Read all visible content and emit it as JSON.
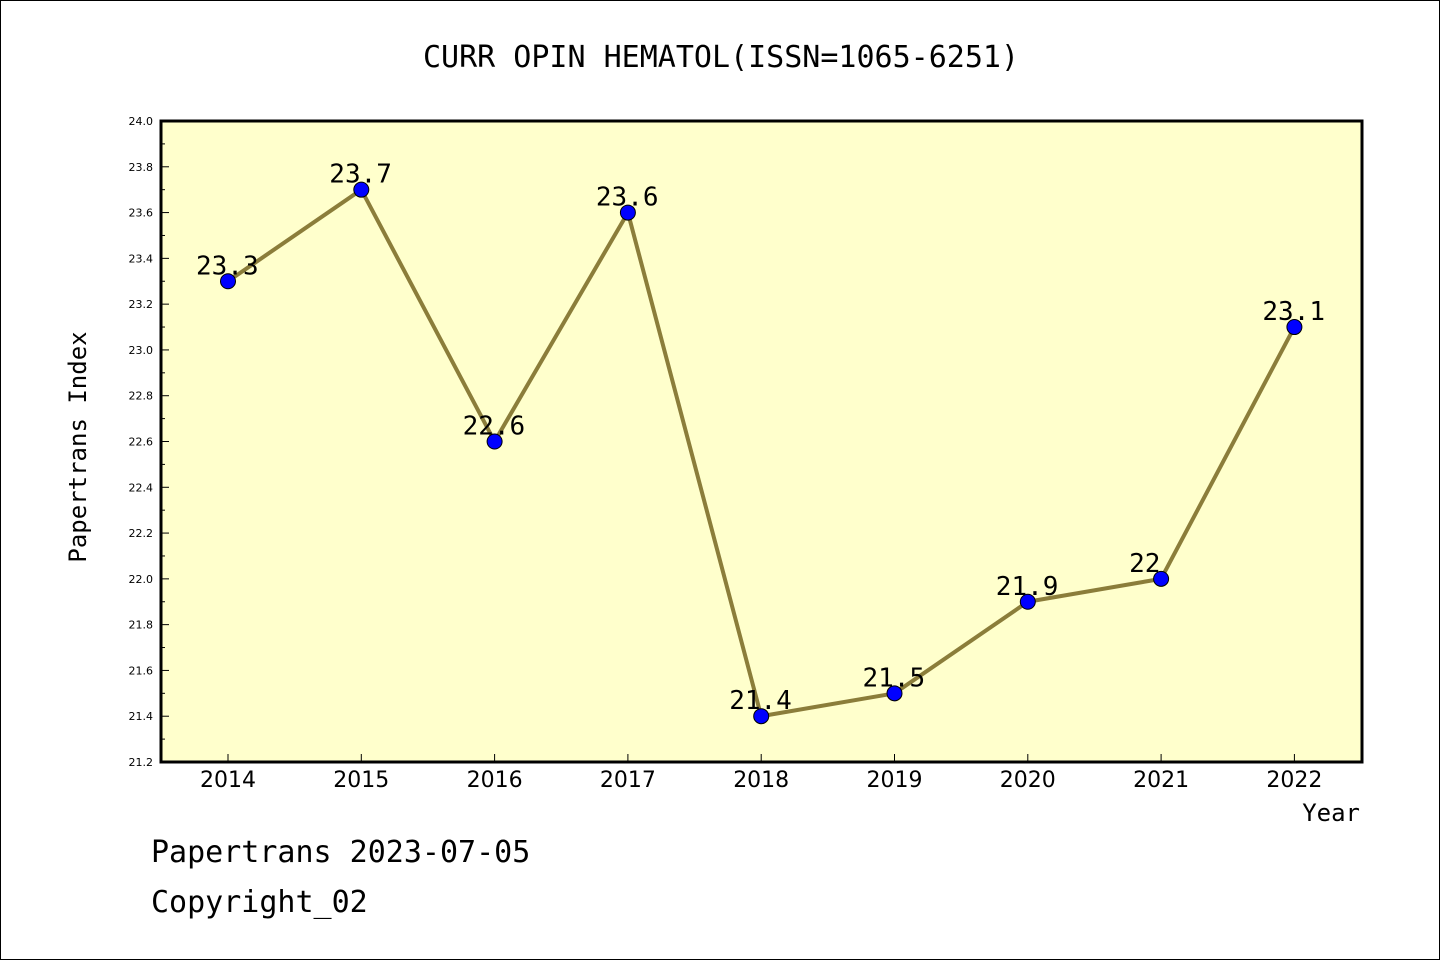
{
  "chart_data": {
    "type": "line",
    "title": "CURR OPIN HEMATOL(ISSN=1065-6251)",
    "xlabel": "Year",
    "ylabel": "Papertrans Index",
    "categories": [
      "2014",
      "2015",
      "2016",
      "2017",
      "2018",
      "2019",
      "2020",
      "2021",
      "2022"
    ],
    "series": [
      {
        "values": [
          23.3,
          23.7,
          22.6,
          23.6,
          21.4,
          21.5,
          21.9,
          22.0,
          23.1
        ],
        "labels": [
          "23.3",
          "23.7",
          "22.6",
          "23.6",
          "21.4",
          "21.5",
          "21.9",
          "22",
          "23.1"
        ]
      }
    ],
    "ylim": [
      21.2,
      24.0
    ],
    "yticks": [
      "21.2",
      "21.4",
      "21.6",
      "21.8",
      "22.0",
      "22.2",
      "22.4",
      "22.6",
      "22.8",
      "23.0",
      "23.2",
      "23.4",
      "23.6",
      "23.8",
      "24.0"
    ],
    "grid": false,
    "legend": "none",
    "colors": {
      "plot_background": "#ffffcc",
      "line": "#8b7d3a",
      "marker": "#0000ff",
      "frame": "#000000"
    }
  },
  "footer": {
    "source": "Papertrans 2023-07-05",
    "copyright": "Copyright_02"
  }
}
